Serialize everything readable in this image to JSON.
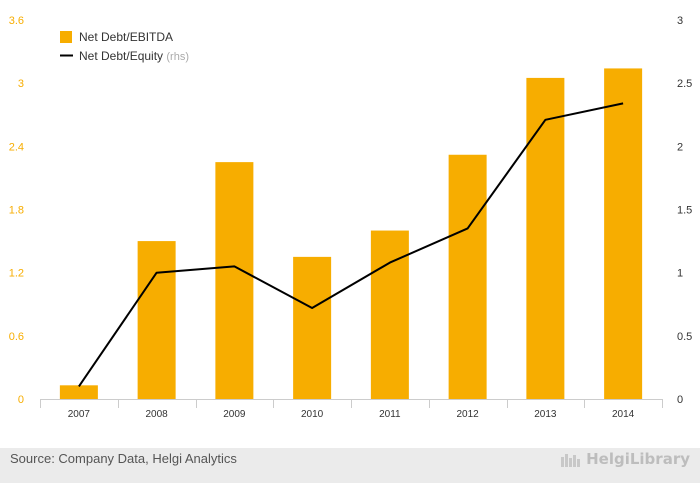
{
  "chart_data": {
    "type": "bar",
    "categories": [
      "2007",
      "2008",
      "2009",
      "2010",
      "2011",
      "2012",
      "2013",
      "2014"
    ],
    "series": [
      {
        "name": "Net Debt/EBITDA",
        "type": "bar",
        "axis": "left",
        "color": "#f7ad00",
        "values": [
          0.13,
          1.5,
          2.25,
          1.35,
          1.6,
          2.32,
          3.05,
          3.14
        ]
      },
      {
        "name": "Net Debt/Equity",
        "name_suffix": "(rhs)",
        "type": "line",
        "axis": "right",
        "color": "#000000",
        "values": [
          0.1,
          1.0,
          1.05,
          0.72,
          1.08,
          1.35,
          2.21,
          2.34
        ]
      }
    ],
    "y_left": {
      "ylim": [
        0,
        3.6
      ],
      "ticks": [
        "0",
        "0.6",
        "1.2",
        "1.8",
        "2.4",
        "3",
        "3.6"
      ]
    },
    "y_right": {
      "ylim": [
        0,
        3
      ],
      "ticks": [
        "0",
        "0.5",
        "1",
        "1.5",
        "2",
        "2.5",
        "3"
      ]
    },
    "grid": false,
    "legend_position": "top-left"
  },
  "footer": {
    "source": "Source: Company Data, Helgi Analytics",
    "brand": "HelgiLibrary"
  },
  "colors": {
    "left_axis_text": "#f7ad00",
    "right_axis_text": "#333333",
    "footer_bg": "#ebebeb"
  }
}
